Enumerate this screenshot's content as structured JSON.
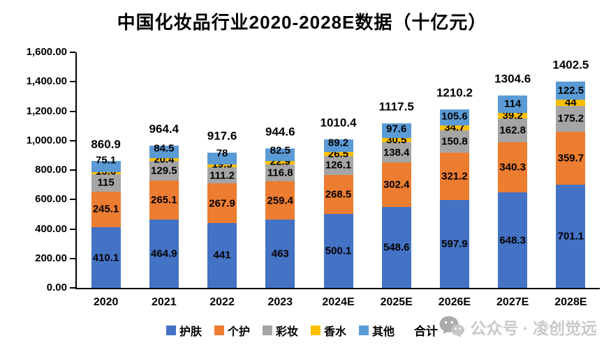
{
  "title": "中国化妆品行业2020-2028E数据（十亿元）",
  "watermark": {
    "icon": "wechat-icon",
    "label": "公众号 · 凌创觉远"
  },
  "chart_data": {
    "type": "bar",
    "stacked": true,
    "title": "中国化妆品行业2020-2028E数据（十亿元）",
    "unit": "十亿元",
    "grid": false,
    "legend_position": "bottom",
    "ylim": [
      0,
      1600
    ],
    "categories": [
      "2020",
      "2021",
      "2022",
      "2023",
      "2024E",
      "2025E",
      "2026E",
      "2027E",
      "2028E"
    ],
    "series": [
      {
        "name": "护肤",
        "key": "skincare",
        "color": "#4472C4",
        "values": [
          410.1,
          464.9,
          441,
          463,
          500.1,
          548.6,
          597.9,
          648.3,
          701.1
        ]
      },
      {
        "name": "个护",
        "key": "personal-care",
        "color": "#ED7D31",
        "values": [
          245.1,
          265.1,
          267.9,
          259.4,
          268.5,
          302.4,
          321.2,
          340.3,
          359.7
        ]
      },
      {
        "name": "彩妆",
        "key": "makeup",
        "color": "#A5A5A5",
        "values": [
          115,
          129.5,
          111.2,
          116.8,
          126.1,
          138.4,
          150.8,
          162.8,
          175.2
        ]
      },
      {
        "name": "香水",
        "key": "perfume",
        "color": "#FFC000",
        "values": [
          15.6,
          20.4,
          19.5,
          22.9,
          26.5,
          30.5,
          34.7,
          39.2,
          44
        ]
      },
      {
        "name": "其他",
        "key": "others",
        "color": "#5B9BD5",
        "values": [
          75.1,
          84.5,
          78,
          82.5,
          89.2,
          97.6,
          105.6,
          114,
          122.5
        ]
      }
    ],
    "totals": [
      860.9,
      964.4,
      917.6,
      944.6,
      1010.4,
      1117.5,
      1210.2,
      1304.6,
      1402.5
    ],
    "totals_label": "合计",
    "y_ticks": [
      {
        "value": 0,
        "label": "0.00"
      },
      {
        "value": 200,
        "label": "200.00"
      },
      {
        "value": 400,
        "label": "400.00"
      },
      {
        "value": 600,
        "label": "600.00"
      },
      {
        "value": 800,
        "label": "800.00"
      },
      {
        "value": 1000,
        "label": "1,000.00"
      },
      {
        "value": 1200,
        "label": "1,200.00"
      },
      {
        "value": 1400,
        "label": "1,400.00"
      },
      {
        "value": 1600,
        "label": "1,600.00"
      }
    ]
  }
}
